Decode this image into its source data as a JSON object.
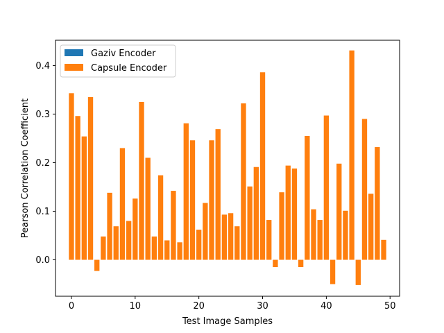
{
  "chart_data": {
    "type": "bar",
    "xlabel": "Test Image Samples",
    "ylabel": "Pearson Correlation Coefficient",
    "xlim": [
      -2.5,
      51.5
    ],
    "ylim": [
      -0.075,
      0.452
    ],
    "x_ticks": [
      0,
      10,
      20,
      30,
      40,
      50
    ],
    "y_ticks": [
      0.0,
      0.1,
      0.2,
      0.3,
      0.4
    ],
    "y_tick_labels": [
      "0.0",
      "0.1",
      "0.2",
      "0.3",
      "0.4"
    ],
    "legend_position": "top-left",
    "series": [
      {
        "name": "Gaziv Encoder",
        "color": "#1f77b4",
        "values": []
      },
      {
        "name": "Capsule Encoder",
        "color": "#ff7f0e",
        "x": [
          0,
          1,
          2,
          3,
          4,
          5,
          6,
          7,
          8,
          9,
          10,
          11,
          12,
          13,
          14,
          15,
          16,
          17,
          18,
          19,
          20,
          21,
          22,
          23,
          24,
          25,
          26,
          27,
          28,
          29,
          30,
          31,
          32,
          33,
          34,
          35,
          36,
          37,
          38,
          39,
          40,
          41,
          42,
          43,
          44,
          45,
          46,
          47,
          48,
          49
        ],
        "values": [
          0.343,
          0.296,
          0.254,
          0.335,
          -0.023,
          0.048,
          0.138,
          0.069,
          0.23,
          0.08,
          0.126,
          0.325,
          0.21,
          0.048,
          0.174,
          0.04,
          0.142,
          0.036,
          0.281,
          0.246,
          0.062,
          0.117,
          0.246,
          0.269,
          0.093,
          0.096,
          0.069,
          0.322,
          0.151,
          0.191,
          0.386,
          0.082,
          -0.015,
          0.139,
          0.194,
          0.188,
          -0.015,
          0.255,
          0.104,
          0.082,
          0.297,
          -0.05,
          0.198,
          0.101,
          0.431,
          -0.052,
          0.29,
          0.136,
          0.232,
          0.041
        ]
      }
    ]
  }
}
